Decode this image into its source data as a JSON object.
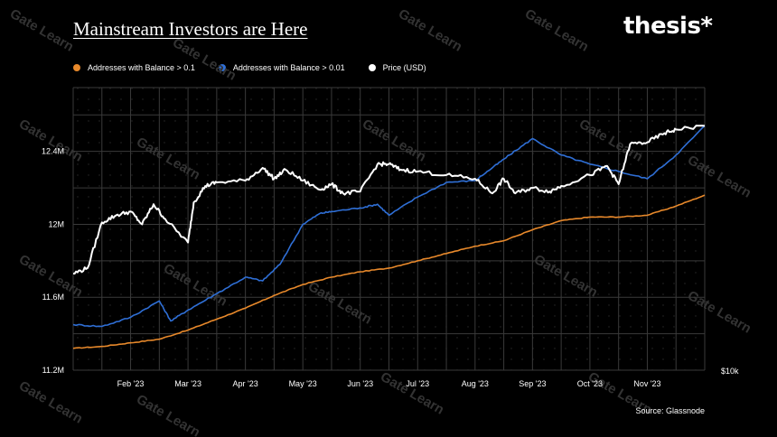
{
  "header": {
    "title": "Mainstream Investors are Here",
    "brand": "thesis*"
  },
  "footer": {
    "source": "Source: Glassnode"
  },
  "watermark": "Gate Learn",
  "colors": {
    "background": "#000000",
    "orange": "#e8892b",
    "blue": "#2f6fd6",
    "white": "#ffffff",
    "grid": "#3a3a3a"
  },
  "chart_data": {
    "type": "line",
    "title": "Mainstream Investors are Here",
    "x_tick_labels": [
      "Feb '23",
      "Mar '23",
      "Apr '23",
      "May '23",
      "Jun '23",
      "Jul '23",
      "Aug '23",
      "Sep '23",
      "Oct '23",
      "Nov '23"
    ],
    "y_left_ticks": [
      "11.2M",
      "11.6M",
      "12M",
      "12.4M"
    ],
    "y_left_range": [
      11.2,
      12.75
    ],
    "y_left_unit": "M",
    "y_right_tick_labels": [
      "$10k"
    ],
    "legend_position": "top-left",
    "grid": true,
    "series": [
      {
        "name": "Addresses with Balance > 0.1",
        "color": "#e8892b",
        "axis": "left",
        "x_month_index": [
          0,
          0.5,
          1.0,
          1.5,
          2.0,
          2.5,
          3.0,
          3.5,
          4.0,
          4.5,
          5.0,
          5.5,
          6.0,
          6.5,
          7.0,
          7.5,
          8.0,
          8.5,
          9.0,
          9.5,
          10.0,
          10.5,
          11.0
        ],
        "values": [
          11.32,
          11.33,
          11.35,
          11.37,
          11.42,
          11.48,
          11.54,
          11.61,
          11.67,
          11.71,
          11.74,
          11.76,
          11.8,
          11.84,
          11.88,
          11.91,
          11.97,
          12.02,
          12.04,
          12.04,
          12.05,
          12.1,
          12.16
        ]
      },
      {
        "name": "Addresses with Balance > 0.01",
        "color": "#2f6fd6",
        "axis": "left",
        "x_month_index": [
          0,
          0.5,
          1.0,
          1.5,
          1.7,
          2.0,
          2.5,
          3.0,
          3.3,
          3.6,
          4.0,
          4.3,
          4.5,
          5.0,
          5.3,
          5.5,
          6.0,
          6.5,
          7.0,
          7.3,
          7.6,
          8.0,
          8.5,
          9.0,
          9.5,
          10.0,
          10.5,
          11.0
        ],
        "values": [
          11.45,
          11.44,
          11.49,
          11.58,
          11.47,
          11.53,
          11.62,
          11.71,
          11.69,
          11.78,
          12.0,
          12.06,
          12.07,
          12.09,
          12.11,
          12.05,
          12.15,
          12.23,
          12.24,
          12.31,
          12.38,
          12.47,
          12.38,
          12.33,
          12.29,
          12.25,
          12.38,
          12.54
        ]
      },
      {
        "name": "Price (USD)",
        "color": "#ffffff",
        "axis": "right",
        "x_month_index": [
          0,
          0.25,
          0.5,
          0.75,
          1.0,
          1.2,
          1.4,
          1.6,
          2.0,
          2.1,
          2.3,
          2.5,
          3.0,
          3.3,
          3.5,
          3.7,
          4.0,
          4.3,
          4.5,
          4.7,
          5.0,
          5.3,
          5.5,
          5.7,
          6.0,
          6.5,
          7.0,
          7.3,
          7.5,
          7.7,
          8.0,
          8.3,
          8.5,
          9.0,
          9.3,
          9.5,
          9.7,
          10.0,
          10.3,
          10.5,
          11.0
        ],
        "values": [
          11.73,
          11.76,
          12.01,
          12.05,
          12.07,
          12.0,
          12.11,
          12.03,
          11.9,
          12.12,
          12.21,
          12.23,
          12.24,
          12.31,
          12.25,
          12.3,
          12.24,
          12.19,
          12.22,
          12.17,
          12.18,
          12.33,
          12.33,
          12.3,
          12.29,
          12.27,
          12.25,
          12.17,
          12.25,
          12.17,
          12.2,
          12.18,
          12.21,
          12.27,
          12.32,
          12.22,
          12.44,
          12.45,
          12.5,
          12.52,
          12.54
        ]
      }
    ]
  }
}
